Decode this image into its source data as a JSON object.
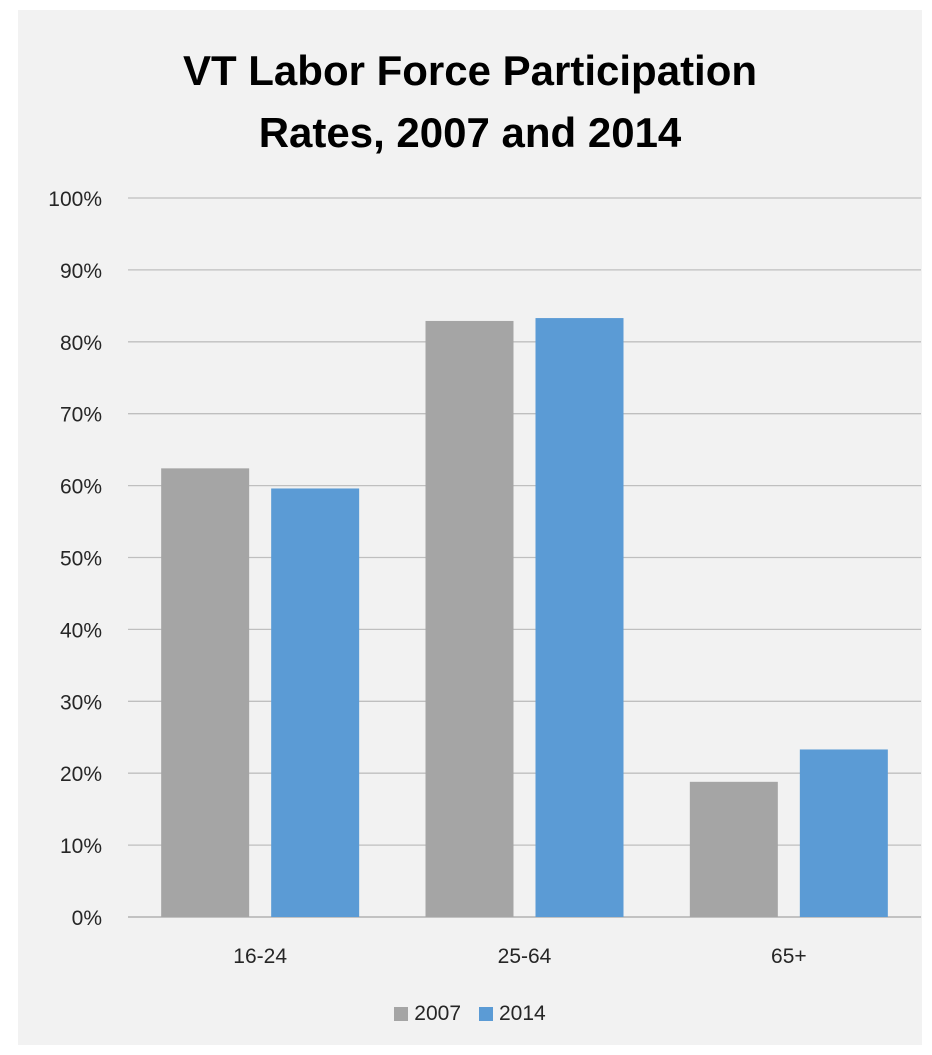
{
  "chart_data": {
    "type": "bar",
    "title": "VT Labor Force Participation\nRates, 2007 and 2014",
    "xlabel": "",
    "ylabel": "",
    "categories": [
      "16-24",
      "25-64",
      "65+"
    ],
    "series": [
      {
        "name": "2007",
        "values": [
          62.4,
          82.9,
          18.8
        ],
        "color": "#a5a5a5"
      },
      {
        "name": "2014",
        "values": [
          59.6,
          83.3,
          23.3
        ],
        "color": "#5b9bd5"
      }
    ],
    "ylim": [
      0,
      100
    ],
    "yticks": [
      0,
      10,
      20,
      30,
      40,
      50,
      60,
      70,
      80,
      90,
      100
    ],
    "ytick_labels": [
      "0%",
      "10%",
      "20%",
      "30%",
      "40%",
      "50%",
      "60%",
      "70%",
      "80%",
      "90%",
      "100%"
    ],
    "grid": true,
    "legend_position": "bottom",
    "colors": {
      "background": "#f2f2f2",
      "gridline": "#bfbfbf",
      "axis": "#a6a6a6",
      "text": "#262626"
    }
  }
}
